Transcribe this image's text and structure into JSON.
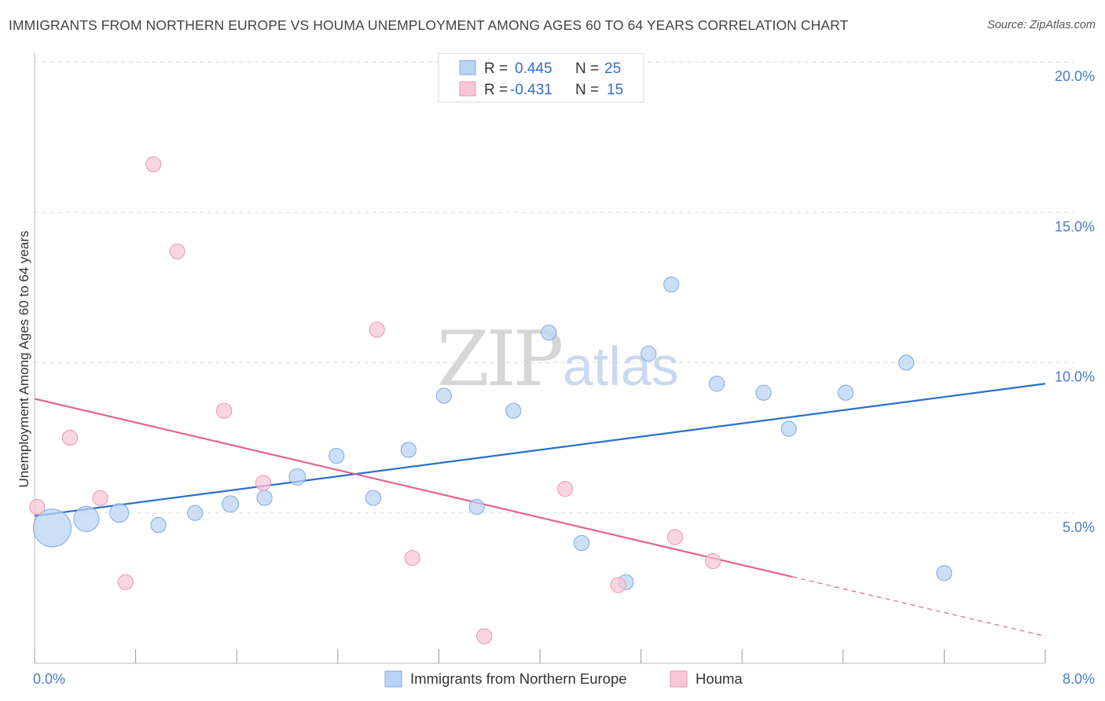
{
  "title": "IMMIGRANTS FROM NORTHERN EUROPE VS HOUMA UNEMPLOYMENT AMONG AGES 60 TO 64 YEARS CORRELATION CHART",
  "source": "Source: ZipAtlas.com",
  "watermark": {
    "zip": "ZIP",
    "atlas": "atlas"
  },
  "colors": {
    "blue_fill": "#b8d3f3",
    "blue_stroke": "#7fa9e0",
    "blue_line": "#2b6fd0",
    "pink_fill": "#f8c6d6",
    "pink_stroke": "#ec97b2",
    "pink_line": "#e2658e",
    "tick_text": "#4a7cc9",
    "grid": "#dddddd"
  },
  "stats_legend": [
    {
      "r_label": "R =",
      "r_value": "0.445",
      "n_label": "N =",
      "n_value": "25",
      "color": "blue"
    },
    {
      "r_label": "R =",
      "r_value": "-0.431",
      "n_label": "N =",
      "n_value": "15",
      "color": "pink"
    }
  ],
  "chart_data": {
    "type": "scatter",
    "title": "IMMIGRANTS FROM NORTHERN EUROPE VS HOUMA UNEMPLOYMENT AMONG AGES 60 TO 64 YEARS CORRELATION CHART",
    "xlabel": "",
    "ylabel": "Unemployment Among Ages 60 to 64 years",
    "xlim": [
      0,
      8
    ],
    "ylim": [
      0,
      20
    ],
    "x_tick_labels": [
      {
        "value": 0,
        "label": "0.0%"
      },
      {
        "value": 8,
        "label": "8.0%"
      }
    ],
    "y_tick_labels": [
      {
        "value": 5,
        "label": "5.0%"
      },
      {
        "value": 10,
        "label": "10.0%"
      },
      {
        "value": 15,
        "label": "15.0%"
      },
      {
        "value": 20,
        "label": "20.0%"
      }
    ],
    "grid": true,
    "legend_position": "bottom",
    "series": [
      {
        "name": "Immigrants from Northern Europe",
        "color": "blue",
        "points": [
          {
            "x": 0.14,
            "y": 4.5,
            "size": 3.0
          },
          {
            "x": 0.41,
            "y": 4.8,
            "size": 2.0
          },
          {
            "x": 0.67,
            "y": 5.0,
            "size": 1.5
          },
          {
            "x": 0.98,
            "y": 4.6,
            "size": 1.2
          },
          {
            "x": 1.27,
            "y": 5.0,
            "size": 1.2
          },
          {
            "x": 1.55,
            "y": 5.3,
            "size": 1.3
          },
          {
            "x": 1.82,
            "y": 5.5,
            "size": 1.2
          },
          {
            "x": 2.08,
            "y": 6.2,
            "size": 1.3
          },
          {
            "x": 2.39,
            "y": 6.9,
            "size": 1.2
          },
          {
            "x": 2.68,
            "y": 5.5,
            "size": 1.2
          },
          {
            "x": 2.96,
            "y": 7.1,
            "size": 1.2
          },
          {
            "x": 3.24,
            "y": 8.9,
            "size": 1.2
          },
          {
            "x": 3.5,
            "y": 5.2,
            "size": 1.2
          },
          {
            "x": 3.79,
            "y": 8.4,
            "size": 1.2
          },
          {
            "x": 4.07,
            "y": 11.0,
            "size": 1.2
          },
          {
            "x": 4.33,
            "y": 4.0,
            "size": 1.2
          },
          {
            "x": 4.68,
            "y": 2.7,
            "size": 1.2
          },
          {
            "x": 4.86,
            "y": 10.3,
            "size": 1.2
          },
          {
            "x": 5.04,
            "y": 12.6,
            "size": 1.2
          },
          {
            "x": 5.4,
            "y": 9.3,
            "size": 1.2
          },
          {
            "x": 5.77,
            "y": 9.0,
            "size": 1.2
          },
          {
            "x": 5.97,
            "y": 7.8,
            "size": 1.2
          },
          {
            "x": 6.42,
            "y": 9.0,
            "size": 1.2
          },
          {
            "x": 6.9,
            "y": 10.0,
            "size": 1.2
          },
          {
            "x": 7.2,
            "y": 3.0,
            "size": 1.2
          }
        ],
        "trend": {
          "x0": 0,
          "y0": 4.9,
          "x1": 8,
          "y1": 9.3,
          "solid_until": 8
        }
      },
      {
        "name": "Houma",
        "color": "pink",
        "points": [
          {
            "x": 0.02,
            "y": 5.2,
            "size": 1.2
          },
          {
            "x": 0.28,
            "y": 7.5,
            "size": 1.2
          },
          {
            "x": 0.52,
            "y": 5.5,
            "size": 1.2
          },
          {
            "x": 0.72,
            "y": 2.7,
            "size": 1.2
          },
          {
            "x": 0.94,
            "y": 16.6,
            "size": 1.2
          },
          {
            "x": 1.13,
            "y": 13.7,
            "size": 1.2
          },
          {
            "x": 1.5,
            "y": 8.4,
            "size": 1.2
          },
          {
            "x": 1.81,
            "y": 6.0,
            "size": 1.2
          },
          {
            "x": 2.71,
            "y": 11.1,
            "size": 1.2
          },
          {
            "x": 2.99,
            "y": 3.5,
            "size": 1.2
          },
          {
            "x": 3.56,
            "y": 0.9,
            "size": 1.2
          },
          {
            "x": 4.2,
            "y": 5.8,
            "size": 1.2
          },
          {
            "x": 4.62,
            "y": 2.6,
            "size": 1.2
          },
          {
            "x": 5.07,
            "y": 4.2,
            "size": 1.2
          },
          {
            "x": 5.37,
            "y": 3.4,
            "size": 1.2
          }
        ],
        "trend": {
          "x0": 0,
          "y0": 8.8,
          "x1": 8,
          "y1": 0.9,
          "solid_until": 6.0
        }
      }
    ]
  }
}
